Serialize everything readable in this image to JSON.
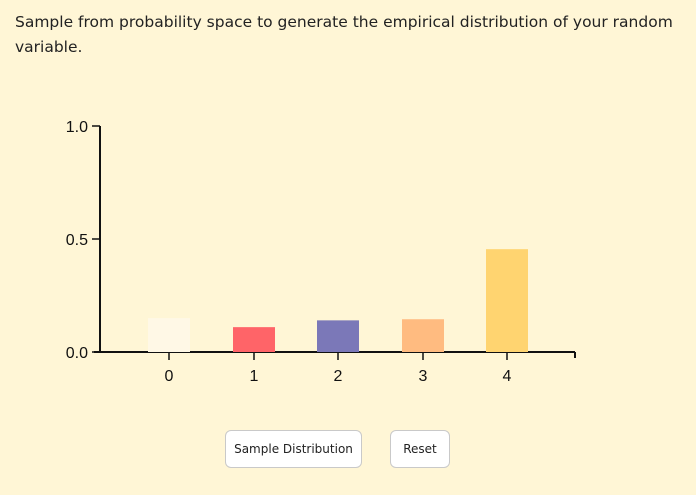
{
  "instructions": "Sample from probability space to generate the empirical distribution of your random variable.",
  "buttons": {
    "sample_label": "Sample Distribution",
    "reset_label": "Reset"
  },
  "chart_data": {
    "type": "bar",
    "categories": [
      "0",
      "1",
      "2",
      "3",
      "4"
    ],
    "values": [
      0.15,
      0.11,
      0.14,
      0.145,
      0.455
    ],
    "bar_colors": [
      "#fff8e6",
      "#ff6468",
      "#7b78b8",
      "#ffbb80",
      "#ffd470"
    ],
    "ylim": [
      0,
      1.0
    ],
    "y_ticks": [
      "0.0",
      "0.5",
      "1.0"
    ],
    "y_tick_values": [
      0,
      0.5,
      1.0
    ],
    "grid": false
  },
  "colors": {
    "background": "#fff6d6",
    "axis": "#111111"
  }
}
